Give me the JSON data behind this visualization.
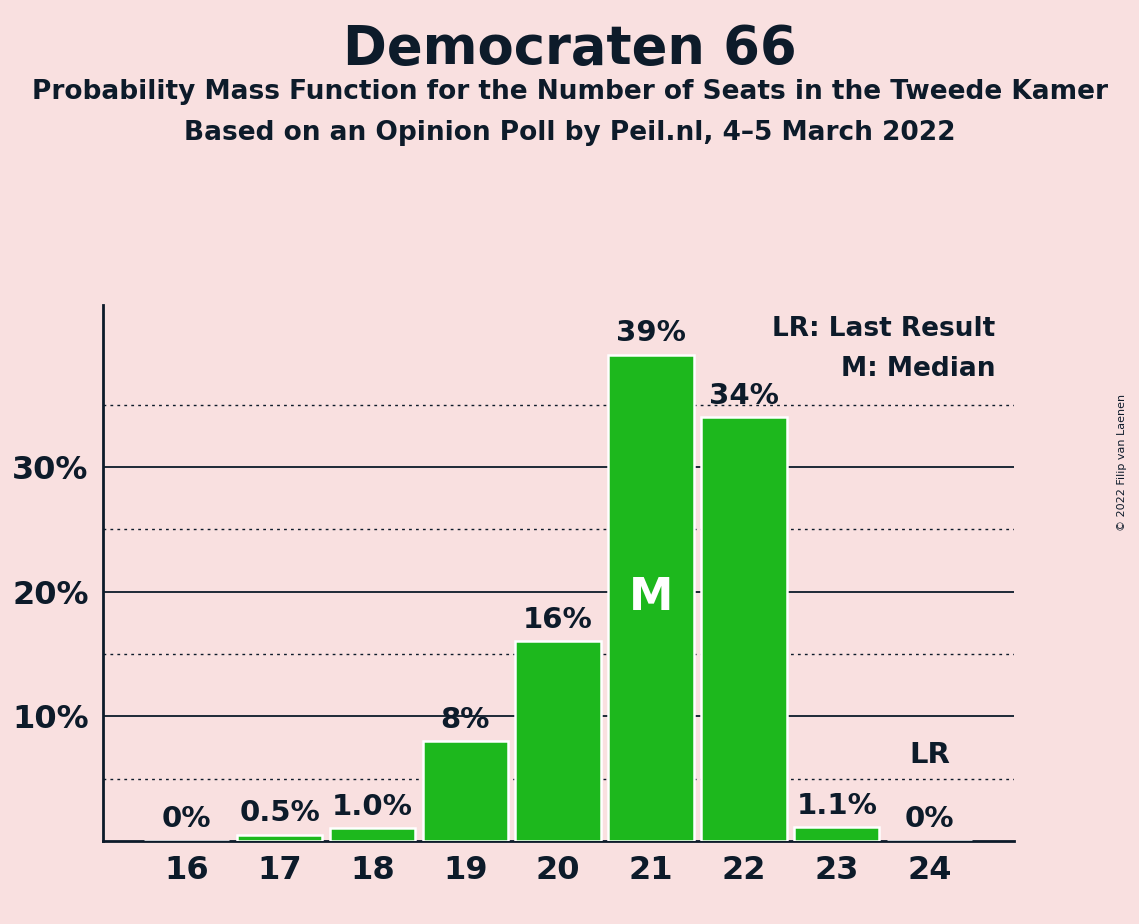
{
  "title": "Democraten 66",
  "subtitle1": "Probability Mass Function for the Number of Seats in the Tweede Kamer",
  "subtitle2": "Based on an Opinion Poll by Peil.nl, 4–5 March 2022",
  "copyright": "© 2022 Filip van Laenen",
  "categories": [
    16,
    17,
    18,
    19,
    20,
    21,
    22,
    23,
    24
  ],
  "values": [
    0.0,
    0.5,
    1.0,
    8.0,
    16.0,
    39.0,
    34.0,
    1.1,
    0.0
  ],
  "bar_labels": [
    "0%",
    "0.5%",
    "1.0%",
    "8%",
    "16%",
    "39%",
    "34%",
    "1.1%",
    "0%"
  ],
  "bar_color": "#1db81d",
  "background_color": "#f9e0e0",
  "bar_edge_color": "#ffffff",
  "axis_color": "#0d1b2a",
  "text_color": "#0d1b2a",
  "median_bar_idx": 5,
  "median_label": "M",
  "lr_bar_idx": 8,
  "lr_label": "LR",
  "legend_lr": "LR: Last Result",
  "legend_m": "M: Median",
  "ylim": [
    0,
    43
  ],
  "dotted_yticks": [
    5,
    15,
    25,
    35
  ],
  "solid_yticks": [
    10,
    20,
    30
  ],
  "title_fontsize": 38,
  "subtitle_fontsize": 19,
  "bar_label_fontsize": 21,
  "tick_fontsize": 23,
  "legend_fontsize": 19,
  "median_fontsize": 32
}
